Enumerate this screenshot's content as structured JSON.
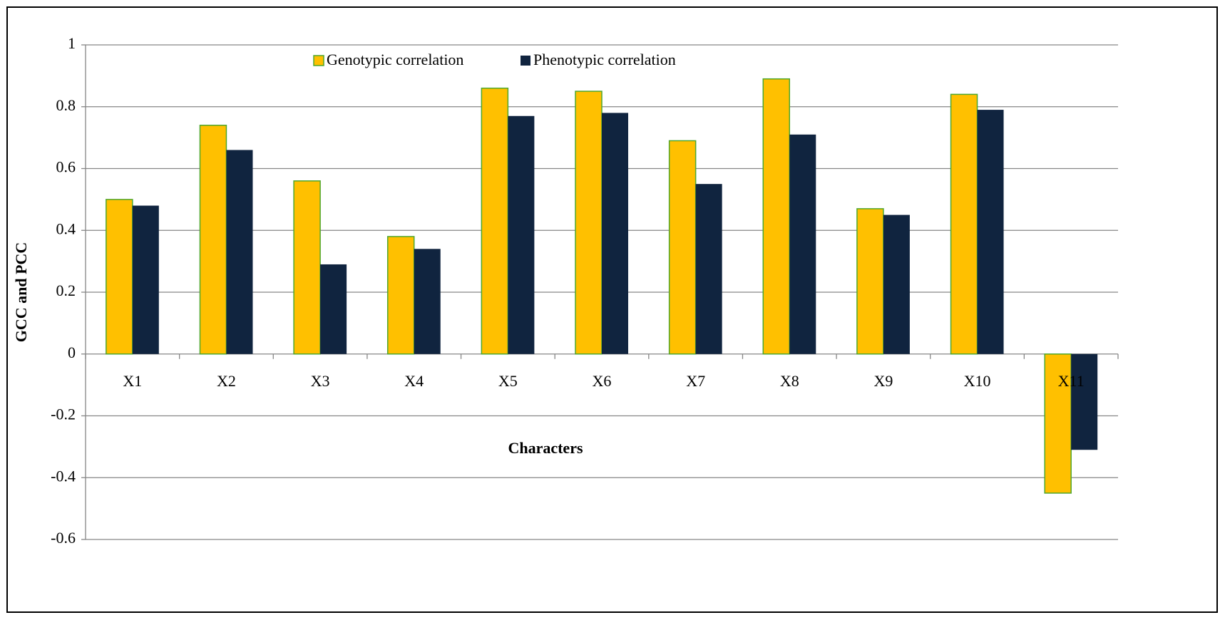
{
  "chart_data": {
    "type": "bar",
    "x_label": "Characters",
    "y_label": "GCC and PCC",
    "categories": [
      "X1",
      "X2",
      "X3",
      "X4",
      "X5",
      "X6",
      "X7",
      "X8",
      "X9",
      "X10",
      "X11"
    ],
    "series": [
      {
        "name": "Genotypic correlation",
        "color": "#ffc000",
        "edge_color": "#4ea72e",
        "values": [
          0.5,
          0.74,
          0.56,
          0.38,
          0.86,
          0.85,
          0.69,
          0.89,
          0.47,
          0.84,
          -0.45
        ]
      },
      {
        "name": "Phenotypic correlation",
        "color": "#10243f",
        "values": [
          0.48,
          0.66,
          0.29,
          0.34,
          0.77,
          0.78,
          0.55,
          0.71,
          0.45,
          0.79,
          -0.31
        ]
      }
    ],
    "ylim": [
      -0.6,
      1
    ],
    "yticks": [
      -0.6,
      -0.4,
      -0.2,
      0,
      0.2,
      0.4,
      0.6,
      0.8,
      1
    ],
    "grid": true,
    "legend": "top"
  }
}
